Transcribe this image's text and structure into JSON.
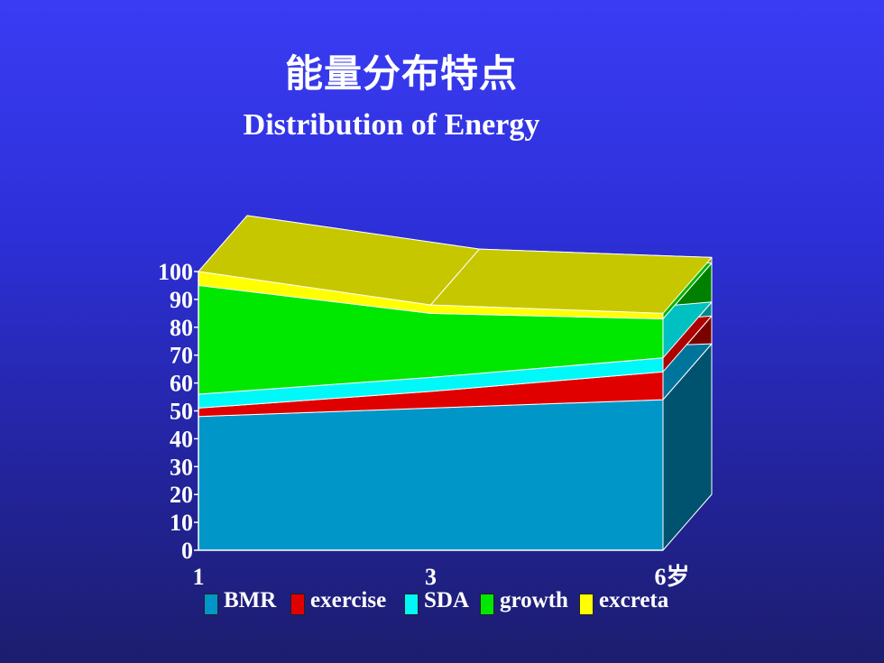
{
  "slide": {
    "title_cn": "能量分布特点",
    "title_en": "Distribution of Energy",
    "background_color": "#2f31d6"
  },
  "chart_data": {
    "type": "area",
    "stacked": true,
    "style": "3d",
    "title": "Distribution of Energy",
    "categories": [
      "1",
      "3",
      "6岁"
    ],
    "ylim": [
      0,
      100
    ],
    "yticks": [
      0,
      10,
      20,
      30,
      40,
      50,
      60,
      70,
      80,
      90,
      100
    ],
    "series": [
      {
        "name": "BMR",
        "color": "#0096c8",
        "values": [
          48,
          51,
          54
        ]
      },
      {
        "name": "exercise",
        "color": "#e00000",
        "values": [
          3,
          6,
          10
        ]
      },
      {
        "name": "SDA",
        "color": "#00f8f8",
        "values": [
          5,
          5,
          5
        ]
      },
      {
        "name": "growth",
        "color": "#00e800",
        "values": [
          39,
          23,
          14
        ]
      },
      {
        "name": "excreta",
        "color": "#ffff00",
        "values": [
          5,
          3,
          2
        ]
      }
    ],
    "legend_position": "bottom",
    "grid": false
  }
}
